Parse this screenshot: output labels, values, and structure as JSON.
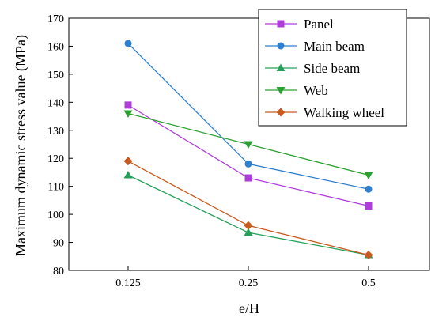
{
  "chart_data": {
    "type": "line",
    "title": "",
    "xlabel": "e/H",
    "ylabel": "Maximum dynamic stress value (MPa)",
    "x_categories": [
      "0.125",
      "0.25",
      "0.5"
    ],
    "ylim": [
      80,
      170
    ],
    "yticks": [
      80,
      90,
      100,
      110,
      120,
      130,
      140,
      150,
      160,
      170
    ],
    "grid": false,
    "legend_position": "top-right",
    "series": [
      {
        "name": "Panel",
        "color": "#b03cdc",
        "marker": "square",
        "values": [
          139,
          113,
          103
        ]
      },
      {
        "name": "Main beam",
        "color": "#2e7fd0",
        "marker": "circle",
        "values": [
          161,
          118,
          109
        ]
      },
      {
        "name": "Side beam",
        "color": "#25a05a",
        "marker": "triangle-up",
        "values": [
          114,
          93.5,
          85.5
        ]
      },
      {
        "name": "Web",
        "color": "#2aa030",
        "marker": "triangle-down",
        "values": [
          136,
          125,
          114
        ]
      },
      {
        "name": "Walking wheel",
        "color": "#c85a1e",
        "marker": "diamond",
        "values": [
          119,
          96,
          85.5
        ]
      }
    ]
  }
}
